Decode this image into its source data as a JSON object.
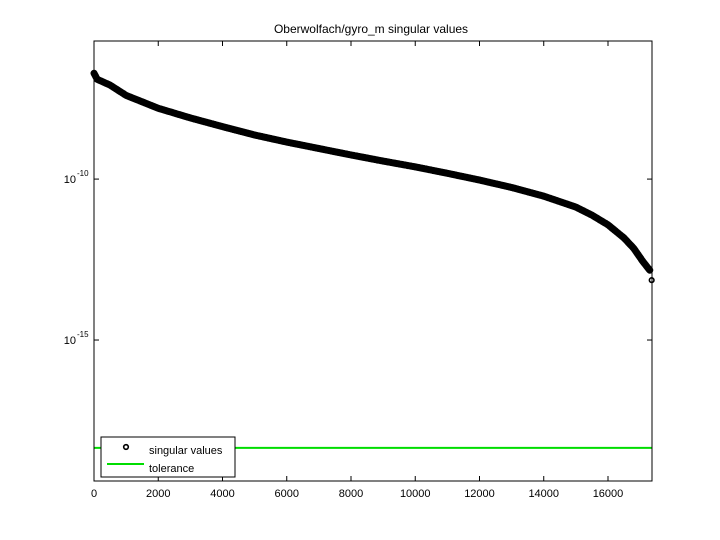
{
  "chart_data": {
    "type": "scatter",
    "title": "Oberwolfach/gyro_m singular values",
    "xlabel": "",
    "ylabel": "",
    "yscale": "log",
    "xlim": [
      0,
      17370
    ],
    "ylim_log10": [
      -19.38,
      -5.71
    ],
    "x_ticks": [
      0,
      2000,
      4000,
      6000,
      8000,
      10000,
      12000,
      14000,
      16000
    ],
    "x_tick_labels": [
      "0",
      "2000",
      "4000",
      "6000",
      "8000",
      "10000",
      "12000",
      "14000",
      "16000"
    ],
    "y_ticks_log10": [
      -10,
      -15
    ],
    "y_tick_labels": [
      {
        "base": "10",
        "exp": "-10"
      },
      {
        "base": "10",
        "exp": "-15"
      }
    ],
    "grid": false,
    "legend_position": "lower left",
    "series": [
      {
        "name": "singular values",
        "marker": "circle",
        "color": "#000000",
        "x": [
          0,
          100,
          500,
          1000,
          2000,
          3000,
          4000,
          5000,
          6000,
          7000,
          8000,
          9000,
          10000,
          11000,
          12000,
          13000,
          14000,
          15000,
          15500,
          16000,
          16500,
          16800,
          17100,
          17300,
          17360
        ],
        "log10_values": [
          -6.71,
          -6.9,
          -7.08,
          -7.4,
          -7.8,
          -8.1,
          -8.37,
          -8.63,
          -8.85,
          -9.05,
          -9.25,
          -9.44,
          -9.62,
          -9.82,
          -10.03,
          -10.26,
          -10.53,
          -10.87,
          -11.12,
          -11.42,
          -11.83,
          -12.15,
          -12.58,
          -12.83,
          -13.14
        ]
      },
      {
        "name": "tolerance",
        "type": "line",
        "color": "#00dd00",
        "log10_value": -18.35
      }
    ]
  },
  "legend": {
    "items": [
      {
        "label": "singular values"
      },
      {
        "label": "tolerance"
      }
    ]
  }
}
